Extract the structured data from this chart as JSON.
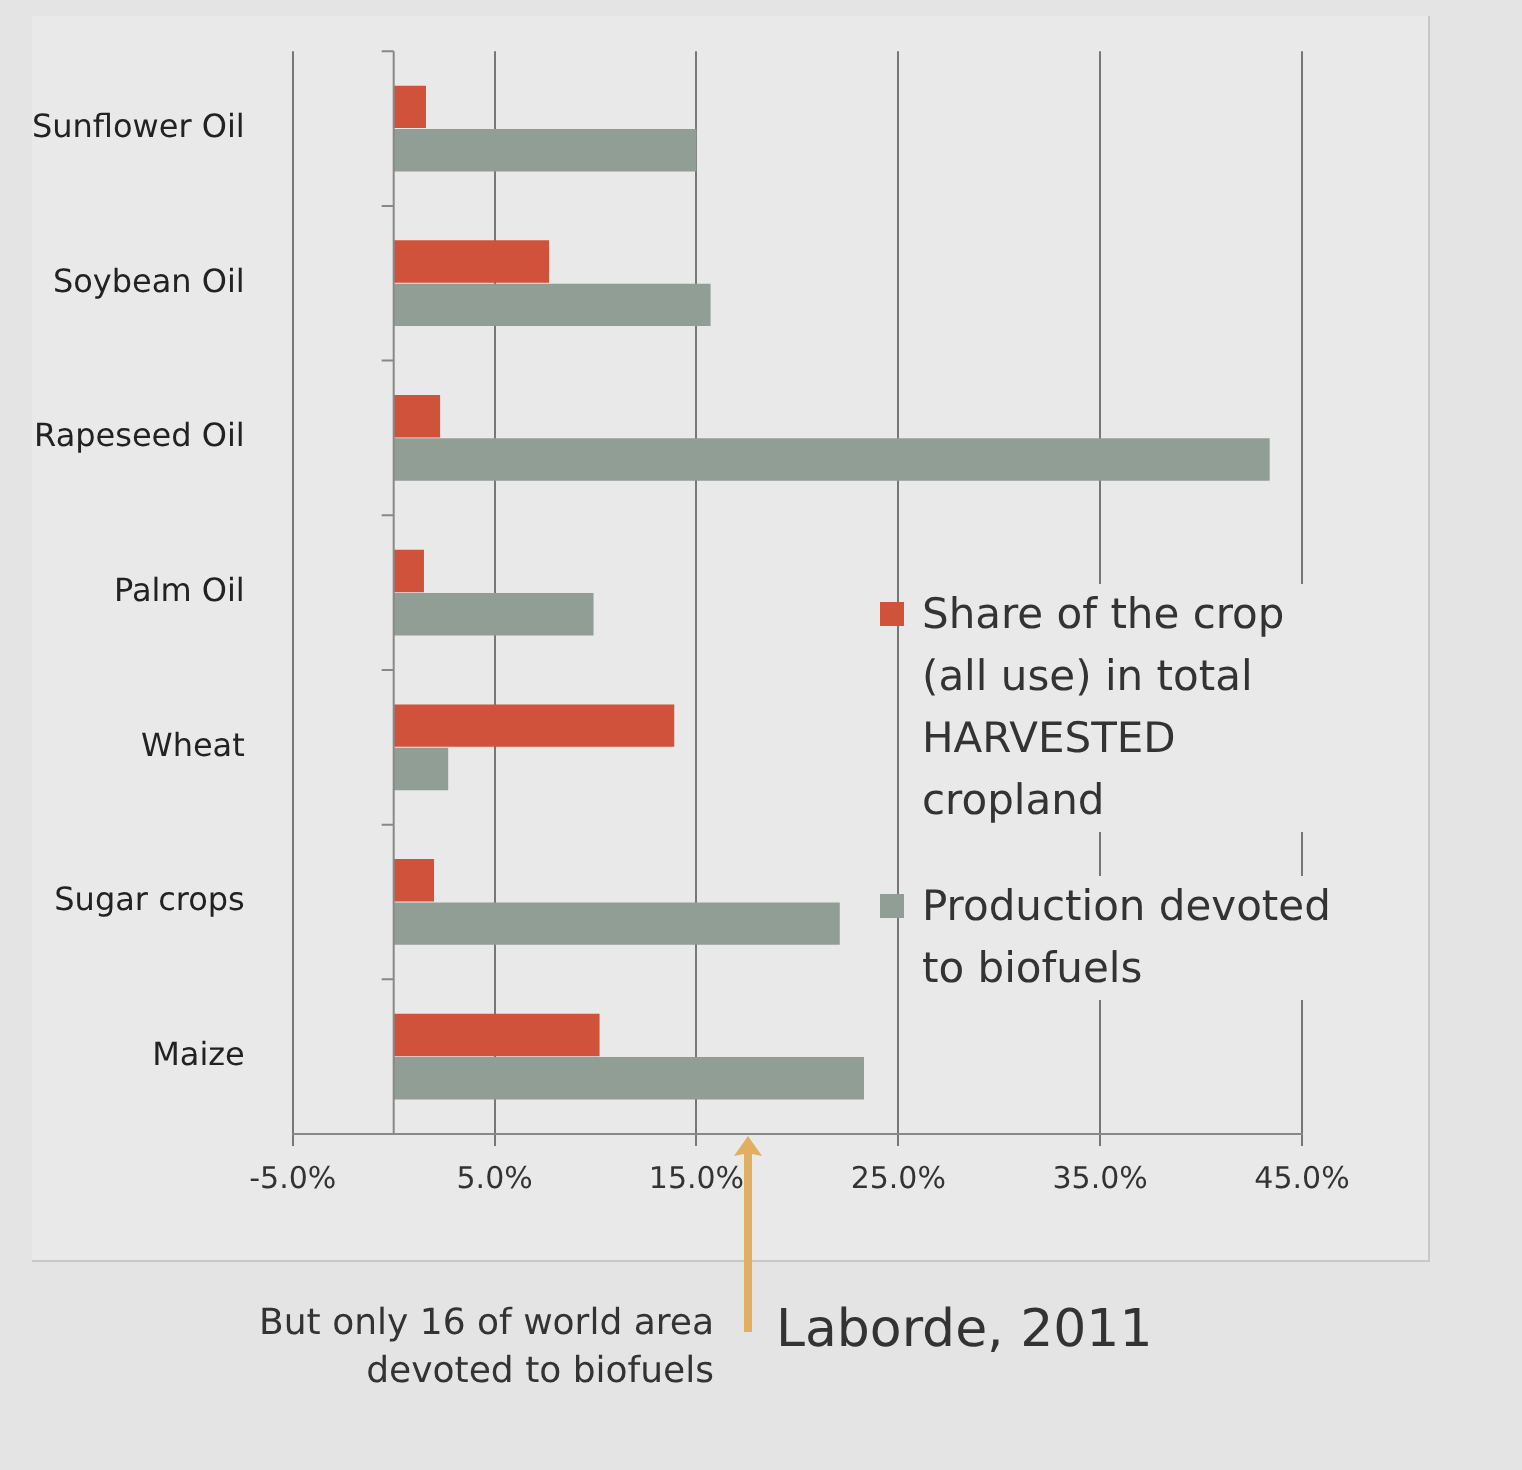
{
  "chart_data": {
    "type": "bar",
    "orientation": "horizontal",
    "categories": [
      "Sunflower Oil",
      "Soybean Oil",
      "Rapeseed Oil",
      "Palm Oil",
      "Wheat",
      "Sugar crops",
      "Maize"
    ],
    "series": [
      {
        "name": "Share of the crop (all use) in total HARVESTED cropland",
        "color": "#d0523a",
        "values": [
          1.6,
          7.7,
          2.3,
          1.5,
          13.9,
          2.0,
          10.2
        ]
      },
      {
        "name": "Production devoted to biofuels",
        "color": "#919e95",
        "values": [
          15.0,
          15.7,
          43.4,
          9.9,
          2.7,
          22.1,
          23.3
        ]
      }
    ],
    "xlim": [
      -5,
      45
    ],
    "xticks": [
      {
        "value": -5,
        "label": "-5.0%"
      },
      {
        "value": 5,
        "label": "5.0%"
      },
      {
        "value": 15,
        "label": "15.0%"
      },
      {
        "value": 25,
        "label": "25.0%"
      },
      {
        "value": 35,
        "label": "35.0%"
      },
      {
        "value": 45,
        "label": "45.0%"
      }
    ],
    "grid": "x",
    "legend": "right",
    "annotations": [
      "But only 16 of world area devoted to biofuels",
      "Laborde, 2011"
    ]
  }
}
